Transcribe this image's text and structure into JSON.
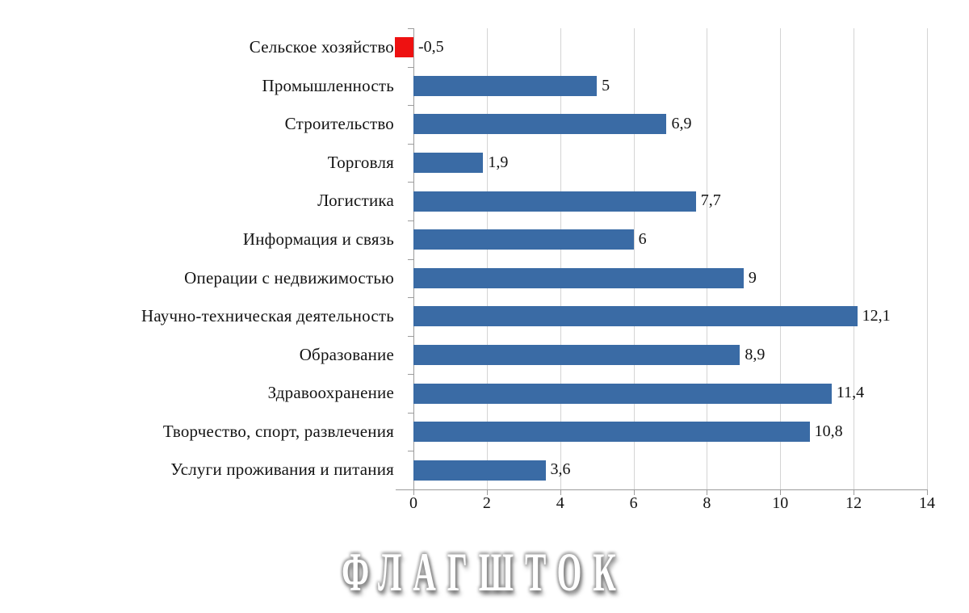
{
  "chart_data": {
    "type": "bar",
    "orientation": "horizontal",
    "title": "",
    "categories": [
      "Сельское хозяйство",
      "Промышленность",
      "Строительство",
      "Торговля",
      "Логистика",
      "Информация и связь",
      "Операции с недвижимостью",
      "Научно-техническая деятельность",
      "Образование",
      "Здравоохранение",
      "Творчество, спорт, развлечения",
      "Услуги проживания и питания"
    ],
    "values": [
      -0.5,
      5,
      6.9,
      1.9,
      7.7,
      6,
      9,
      12.1,
      8.9,
      11.4,
      10.8,
      3.6
    ],
    "value_labels": [
      "-0,5",
      "5",
      "6,9",
      "1,9",
      "7,7",
      "6",
      "9",
      "12,1",
      "8,9",
      "11,4",
      "10,8",
      "3,6"
    ],
    "xlim": [
      -0.5,
      14
    ],
    "xticks": [
      0,
      2,
      4,
      6,
      8,
      10,
      12,
      14
    ],
    "xtick_labels": [
      "0",
      "2",
      "4",
      "6",
      "8",
      "10",
      "12",
      "14"
    ],
    "grid": true,
    "legend": "none",
    "colors": {
      "bar_positive": "#3A6BA5",
      "bar_negative": "#EE1111",
      "gridline": "#D4D4D4",
      "axis": "#9C9C9C",
      "text": "#141414"
    }
  },
  "watermark": {
    "text": "ФЛАГШТОК"
  }
}
